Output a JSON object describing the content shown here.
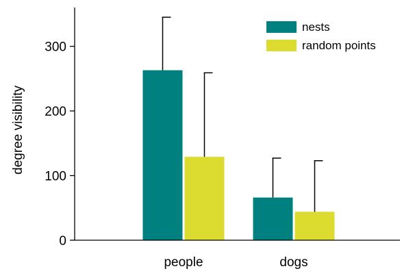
{
  "chart_data": {
    "type": "bar",
    "title": "",
    "xlabel": "",
    "ylabel": "degree visibility",
    "categories": [
      "people",
      "dogs"
    ],
    "series": [
      {
        "name": "nests",
        "values": [
          263,
          66
        ],
        "errors": [
          82,
          61
        ],
        "color": "#00807f"
      },
      {
        "name": "random points",
        "values": [
          129,
          44
        ],
        "errors": [
          130,
          79
        ],
        "color": "#dcdc30"
      }
    ],
    "ylim": [
      0,
      360
    ],
    "yticks": [
      0,
      100,
      200,
      300
    ],
    "grid": false,
    "legend": "top-right"
  }
}
